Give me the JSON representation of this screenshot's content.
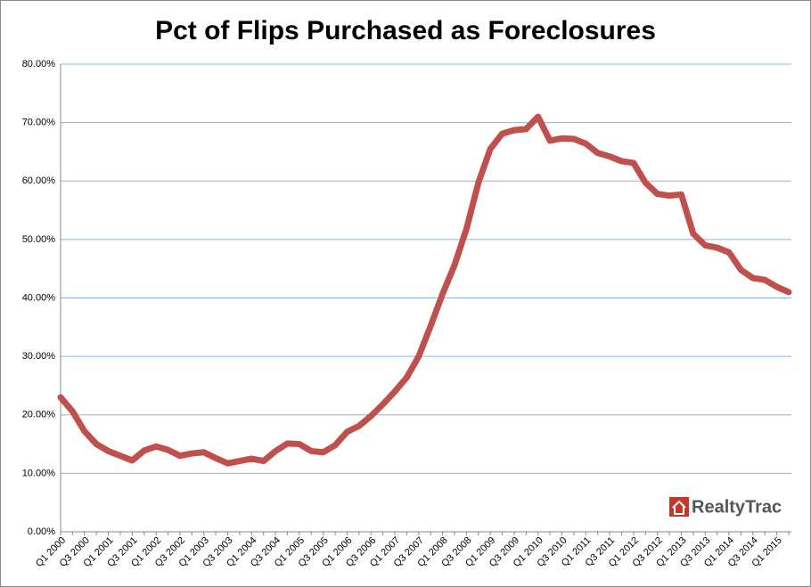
{
  "chart_data": {
    "type": "line",
    "title": "Pct of Flips Purchased as Foreclosures",
    "brand": "RealtyTrac",
    "categories": [
      "Q1 2000",
      null,
      "Q3 2000",
      null,
      "Q1 2001",
      null,
      "Q3 2001",
      null,
      "Q1 2002",
      null,
      "Q3 2002",
      null,
      "Q1 2003",
      null,
      "Q3 2003",
      null,
      "Q1 2004",
      null,
      "Q3 2004",
      null,
      "Q1 2005",
      null,
      "Q3 2005",
      null,
      "Q1 2006",
      null,
      "Q3 2006",
      null,
      "Q1 2007",
      null,
      "Q3 2007",
      null,
      "Q1 2008",
      null,
      "Q3 2008",
      null,
      "Q1 2009",
      null,
      "Q3 2009",
      null,
      "Q1 2010",
      null,
      "Q3 2010",
      null,
      "Q1 2011",
      null,
      "Q3 2011",
      null,
      "Q1 2012",
      null,
      "Q3 2012",
      null,
      "Q1 2013",
      null,
      "Q3 2013",
      null,
      "Q1 2014",
      null,
      "Q3 2014",
      null,
      "Q1 2015",
      null
    ],
    "series": [
      {
        "name": "Pct of Flips Purchased as Foreclosures",
        "color": "#c0504d",
        "values": [
          23,
          20.6,
          17.2,
          15,
          13.8,
          13,
          12.2,
          13.9,
          14.6,
          14,
          13,
          13.4,
          13.6,
          12.6,
          11.7,
          12.1,
          12.5,
          12.1,
          13.8,
          15.1,
          15,
          13.8,
          13.6,
          14.8,
          17.1,
          18.1,
          19.8,
          21.8,
          24,
          26.4,
          30,
          35.2,
          40.7,
          45.6,
          51.8,
          59.7,
          65.5,
          68.1,
          68.7,
          68.9,
          71,
          66.9,
          67.3,
          67.2,
          66.4,
          64.8,
          64.2,
          63.4,
          63.1,
          59.7,
          57.8,
          57.5,
          57.7,
          51,
          49,
          48.6,
          47.8,
          44.8,
          43.4,
          43.1,
          41.9,
          41
        ]
      }
    ],
    "ylim": [
      0,
      80
    ],
    "yticks": [
      {
        "value": 0,
        "label": "0.00%"
      },
      {
        "value": 10,
        "label": "10.00%"
      },
      {
        "value": 20,
        "label": "20.00%"
      },
      {
        "value": 30,
        "label": "30.00%"
      },
      {
        "value": 40,
        "label": "40.00%"
      },
      {
        "value": 50,
        "label": "50.00%"
      },
      {
        "value": 60,
        "label": "60.00%"
      },
      {
        "value": 70,
        "label": "70.00%"
      },
      {
        "value": 80,
        "label": "80.00%"
      }
    ],
    "grid": true
  }
}
